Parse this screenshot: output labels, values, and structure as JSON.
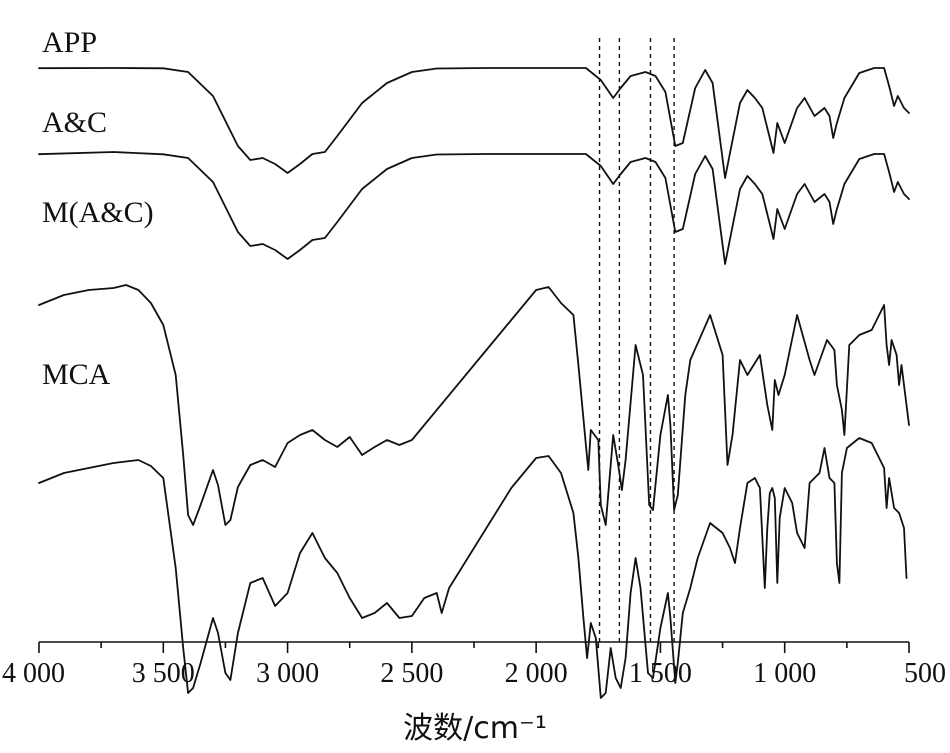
{
  "chart_data": {
    "type": "line",
    "title": "",
    "xlabel": "波数/cm⁻¹",
    "ylabel": "",
    "xlim": [
      4000,
      500
    ],
    "x_reversed": true,
    "grid": false,
    "legend": "labels placed directly above each curve",
    "ticks": [
      {
        "value": 4000,
        "label": "4 000"
      },
      {
        "value": 3500,
        "label": "3 500"
      },
      {
        "value": 3000,
        "label": "3 000"
      },
      {
        "value": 2500,
        "label": "2 500"
      },
      {
        "value": 2000,
        "label": "2 000"
      },
      {
        "value": 1500,
        "label": "1 500"
      },
      {
        "value": 1000,
        "label": "1 000"
      },
      {
        "value": 500,
        "label": "500"
      }
    ],
    "marker_lines": [
      1745,
      1665,
      1540,
      1445
    ],
    "series": [
      {
        "name": "APP",
        "offset": 6,
        "points": [
          [
            4000,
            0.2
          ],
          [
            3700,
            0
          ],
          [
            3500,
            0.3
          ],
          [
            3400,
            4
          ],
          [
            3300,
            28
          ],
          [
            3200,
            78
          ],
          [
            3150,
            92
          ],
          [
            3100,
            90
          ],
          [
            3050,
            96
          ],
          [
            3000,
            105
          ],
          [
            2950,
            96
          ],
          [
            2900,
            86
          ],
          [
            2850,
            84
          ],
          [
            2800,
            68
          ],
          [
            2700,
            35
          ],
          [
            2600,
            15
          ],
          [
            2500,
            4
          ],
          [
            2400,
            0.5
          ],
          [
            2200,
            0
          ],
          [
            1800,
            0
          ],
          [
            1740,
            12
          ],
          [
            1690,
            30
          ],
          [
            1660,
            20
          ],
          [
            1620,
            8
          ],
          [
            1560,
            4
          ],
          [
            1520,
            8
          ],
          [
            1480,
            24
          ],
          [
            1440,
            78
          ],
          [
            1410,
            75
          ],
          [
            1360,
            20
          ],
          [
            1320,
            2
          ],
          [
            1290,
            15
          ],
          [
            1240,
            110
          ],
          [
            1220,
            85
          ],
          [
            1180,
            35
          ],
          [
            1150,
            22
          ],
          [
            1120,
            30
          ],
          [
            1090,
            40
          ],
          [
            1060,
            70
          ],
          [
            1045,
            85
          ],
          [
            1030,
            55
          ],
          [
            1000,
            75
          ],
          [
            950,
            40
          ],
          [
            920,
            30
          ],
          [
            880,
            48
          ],
          [
            840,
            40
          ],
          [
            820,
            48
          ],
          [
            805,
            70
          ],
          [
            790,
            55
          ],
          [
            760,
            30
          ],
          [
            700,
            5
          ],
          [
            640,
            0
          ],
          [
            600,
            0
          ],
          [
            580,
            18
          ],
          [
            560,
            38
          ],
          [
            545,
            28
          ],
          [
            520,
            40
          ],
          [
            500,
            45
          ]
        ]
      },
      {
        "name": "A&C",
        "offset": 92,
        "points": [
          [
            4000,
            0.2
          ],
          [
            3700,
            -2
          ],
          [
            3500,
            0.3
          ],
          [
            3400,
            4
          ],
          [
            3300,
            28
          ],
          [
            3200,
            78
          ],
          [
            3150,
            92
          ],
          [
            3100,
            90
          ],
          [
            3050,
            96
          ],
          [
            3000,
            105
          ],
          [
            2950,
            96
          ],
          [
            2900,
            86
          ],
          [
            2850,
            84
          ],
          [
            2800,
            68
          ],
          [
            2700,
            35
          ],
          [
            2600,
            15
          ],
          [
            2500,
            4
          ],
          [
            2400,
            0.5
          ],
          [
            2200,
            0
          ],
          [
            1800,
            0
          ],
          [
            1740,
            12
          ],
          [
            1690,
            30
          ],
          [
            1660,
            20
          ],
          [
            1620,
            8
          ],
          [
            1560,
            4
          ],
          [
            1520,
            8
          ],
          [
            1480,
            24
          ],
          [
            1440,
            78
          ],
          [
            1410,
            75
          ],
          [
            1360,
            20
          ],
          [
            1320,
            2
          ],
          [
            1290,
            15
          ],
          [
            1240,
            110
          ],
          [
            1220,
            85
          ],
          [
            1180,
            35
          ],
          [
            1150,
            22
          ],
          [
            1120,
            30
          ],
          [
            1090,
            40
          ],
          [
            1060,
            70
          ],
          [
            1045,
            85
          ],
          [
            1030,
            55
          ],
          [
            1000,
            75
          ],
          [
            950,
            40
          ],
          [
            920,
            30
          ],
          [
            880,
            48
          ],
          [
            840,
            40
          ],
          [
            820,
            48
          ],
          [
            805,
            70
          ],
          [
            790,
            55
          ],
          [
            760,
            30
          ],
          [
            700,
            5
          ],
          [
            640,
            0
          ],
          [
            600,
            0
          ],
          [
            580,
            18
          ],
          [
            560,
            38
          ],
          [
            545,
            28
          ],
          [
            520,
            40
          ],
          [
            500,
            45
          ]
        ]
      },
      {
        "name": "M(A&C)",
        "offset": 173,
        "points": [
          [
            4000,
            70
          ],
          [
            3900,
            60
          ],
          [
            3800,
            55
          ],
          [
            3700,
            53
          ],
          [
            3650,
            50
          ],
          [
            3600,
            55
          ],
          [
            3550,
            68
          ],
          [
            3500,
            90
          ],
          [
            3450,
            140
          ],
          [
            3420,
            220
          ],
          [
            3400,
            280
          ],
          [
            3380,
            290
          ],
          [
            3350,
            270
          ],
          [
            3300,
            235
          ],
          [
            3280,
            250
          ],
          [
            3250,
            290
          ],
          [
            3230,
            285
          ],
          [
            3200,
            252
          ],
          [
            3150,
            230
          ],
          [
            3100,
            225
          ],
          [
            3050,
            232
          ],
          [
            3000,
            208
          ],
          [
            2950,
            200
          ],
          [
            2900,
            195
          ],
          [
            2850,
            205
          ],
          [
            2800,
            212
          ],
          [
            2750,
            202
          ],
          [
            2700,
            220
          ],
          [
            2650,
            212
          ],
          [
            2600,
            205
          ],
          [
            2550,
            210
          ],
          [
            2500,
            205
          ],
          [
            2200,
            115
          ],
          [
            2000,
            55
          ],
          [
            1950,
            52
          ],
          [
            1900,
            68
          ],
          [
            1850,
            80
          ],
          [
            1830,
            130
          ],
          [
            1800,
            210
          ],
          [
            1790,
            235
          ],
          [
            1780,
            195
          ],
          [
            1750,
            205
          ],
          [
            1740,
            270
          ],
          [
            1720,
            290
          ],
          [
            1690,
            200
          ],
          [
            1670,
            230
          ],
          [
            1655,
            255
          ],
          [
            1640,
            225
          ],
          [
            1600,
            110
          ],
          [
            1570,
            140
          ],
          [
            1545,
            270
          ],
          [
            1530,
            275
          ],
          [
            1500,
            200
          ],
          [
            1470,
            160
          ],
          [
            1460,
            190
          ],
          [
            1445,
            275
          ],
          [
            1430,
            260
          ],
          [
            1400,
            160
          ],
          [
            1380,
            125
          ],
          [
            1300,
            80
          ],
          [
            1250,
            120
          ],
          [
            1230,
            230
          ],
          [
            1210,
            200
          ],
          [
            1180,
            125
          ],
          [
            1150,
            140
          ],
          [
            1100,
            120
          ],
          [
            1070,
            170
          ],
          [
            1050,
            195
          ],
          [
            1040,
            145
          ],
          [
            1025,
            160
          ],
          [
            1000,
            140
          ],
          [
            950,
            80
          ],
          [
            900,
            125
          ],
          [
            880,
            140
          ],
          [
            830,
            105
          ],
          [
            800,
            115
          ],
          [
            790,
            150
          ],
          [
            770,
            175
          ],
          [
            760,
            200
          ],
          [
            740,
            110
          ],
          [
            700,
            100
          ],
          [
            650,
            95
          ],
          [
            600,
            70
          ],
          [
            590,
            110
          ],
          [
            580,
            130
          ],
          [
            570,
            105
          ],
          [
            550,
            120
          ],
          [
            540,
            150
          ],
          [
            530,
            130
          ],
          [
            500,
            190
          ]
        ]
      },
      {
        "name": "MCA",
        "offset": 356,
        "points": [
          [
            4000,
            65
          ],
          [
            3900,
            55
          ],
          [
            3800,
            50
          ],
          [
            3700,
            45
          ],
          [
            3600,
            42
          ],
          [
            3550,
            48
          ],
          [
            3500,
            60
          ],
          [
            3450,
            150
          ],
          [
            3420,
            230
          ],
          [
            3400,
            275
          ],
          [
            3380,
            270
          ],
          [
            3350,
            245
          ],
          [
            3300,
            200
          ],
          [
            3280,
            215
          ],
          [
            3250,
            255
          ],
          [
            3230,
            262
          ],
          [
            3200,
            215
          ],
          [
            3150,
            165
          ],
          [
            3100,
            160
          ],
          [
            3050,
            188
          ],
          [
            3000,
            175
          ],
          [
            2950,
            135
          ],
          [
            2900,
            115
          ],
          [
            2850,
            140
          ],
          [
            2800,
            155
          ],
          [
            2750,
            180
          ],
          [
            2700,
            200
          ],
          [
            2650,
            195
          ],
          [
            2600,
            185
          ],
          [
            2550,
            200
          ],
          [
            2500,
            198
          ],
          [
            2450,
            180
          ],
          [
            2400,
            175
          ],
          [
            2380,
            195
          ],
          [
            2350,
            170
          ],
          [
            2100,
            70
          ],
          [
            2000,
            40
          ],
          [
            1950,
            38
          ],
          [
            1900,
            55
          ],
          [
            1850,
            95
          ],
          [
            1830,
            140
          ],
          [
            1810,
            200
          ],
          [
            1795,
            240
          ],
          [
            1780,
            205
          ],
          [
            1760,
            220
          ],
          [
            1740,
            280
          ],
          [
            1720,
            275
          ],
          [
            1700,
            230
          ],
          [
            1680,
            260
          ],
          [
            1660,
            270
          ],
          [
            1640,
            240
          ],
          [
            1620,
            175
          ],
          [
            1600,
            140
          ],
          [
            1580,
            170
          ],
          [
            1550,
            255
          ],
          [
            1530,
            260
          ],
          [
            1500,
            210
          ],
          [
            1470,
            175
          ],
          [
            1460,
            200
          ],
          [
            1440,
            265
          ],
          [
            1430,
            245
          ],
          [
            1410,
            195
          ],
          [
            1380,
            170
          ],
          [
            1350,
            140
          ],
          [
            1300,
            105
          ],
          [
            1250,
            115
          ],
          [
            1220,
            130
          ],
          [
            1200,
            145
          ],
          [
            1180,
            110
          ],
          [
            1150,
            65
          ],
          [
            1120,
            60
          ],
          [
            1100,
            70
          ],
          [
            1080,
            170
          ],
          [
            1070,
            110
          ],
          [
            1060,
            75
          ],
          [
            1050,
            70
          ],
          [
            1040,
            80
          ],
          [
            1030,
            165
          ],
          [
            1020,
            100
          ],
          [
            1000,
            70
          ],
          [
            970,
            85
          ],
          [
            950,
            115
          ],
          [
            920,
            130
          ],
          [
            900,
            65
          ],
          [
            860,
            55
          ],
          [
            840,
            30
          ],
          [
            820,
            60
          ],
          [
            800,
            65
          ],
          [
            790,
            145
          ],
          [
            780,
            165
          ],
          [
            770,
            55
          ],
          [
            750,
            30
          ],
          [
            700,
            20
          ],
          [
            650,
            25
          ],
          [
            600,
            50
          ],
          [
            590,
            90
          ],
          [
            580,
            60
          ],
          [
            560,
            90
          ],
          [
            540,
            95
          ],
          [
            520,
            110
          ],
          [
            510,
            160
          ]
        ]
      }
    ]
  }
}
